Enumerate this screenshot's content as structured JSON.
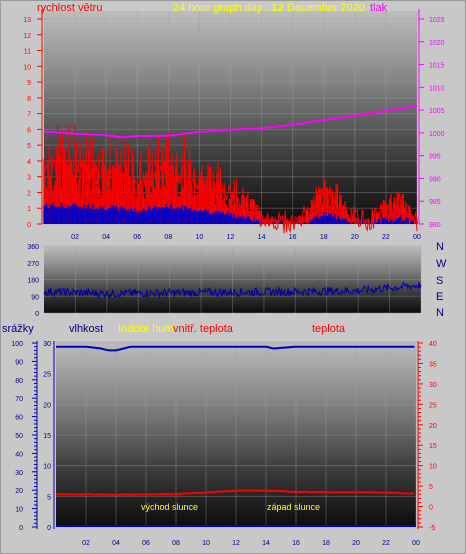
{
  "header": {
    "wind_title": "rychlost větru",
    "graph_title": "24 hour graph day : 12 December 2020",
    "pressure_title": "tlak"
  },
  "compass": [
    "N",
    "W",
    "S",
    "E",
    "N"
  ],
  "mid_header": {
    "rain": "srážky",
    "humidity": "vlhkost",
    "indoor_hum": "Indoor hum",
    "indoor_temp": "vnitř. teplota",
    "temperature": "teplota"
  },
  "annotations": {
    "sunrise": "východ slunce",
    "sunset": "západ slunce"
  },
  "time_ticks": [
    "02",
    "04",
    "06",
    "08",
    "10",
    "12",
    "14",
    "16",
    "18",
    "20",
    "22",
    "00"
  ],
  "colors": {
    "wind": "#ff0000",
    "gust": "#ff0000",
    "wind_avg": "#0000cc",
    "pressure": "#ff00ff",
    "direction": "#0000aa",
    "humidity": "#0000cc",
    "temperature": "#ff0000",
    "rain": "#0000cc",
    "label_red": "#ff0000",
    "label_yellow": "#ffff00",
    "label_magenta": "#ff00ff",
    "label_blue": "#0000aa"
  },
  "chart_data": [
    {
      "type": "line",
      "title": "24 hour graph day : 12 December 2020",
      "x_ticks": [
        "02",
        "04",
        "06",
        "08",
        "10",
        "12",
        "14",
        "16",
        "18",
        "20",
        "22",
        "00"
      ],
      "y_left_label": "rychlost větru",
      "y_left_ticks": [
        "0",
        "1",
        "2",
        "3",
        "4",
        "5",
        "6",
        "7",
        "8",
        "9",
        "10",
        "11",
        "12",
        "13"
      ],
      "y_left_range": [
        0,
        13
      ],
      "y_right_label": "tlak",
      "y_right_ticks": [
        "980",
        "985",
        "990",
        "995",
        "1000",
        "1005",
        "1010",
        "1015",
        "1020",
        "1025"
      ],
      "y_right_range": [
        980,
        1025
      ],
      "series": [
        {
          "name": "rychlost větru",
          "axis": "left",
          "hours": [
            0,
            2,
            4,
            5,
            6,
            8,
            10,
            12,
            13,
            14,
            15,
            16,
            17,
            18,
            19,
            20,
            21,
            22,
            23,
            24
          ],
          "values": [
            3.5,
            3.5,
            3.2,
            3.0,
            2.6,
            3.4,
            2.7,
            1.8,
            1.2,
            0.5,
            0.2,
            0.1,
            0.6,
            2.0,
            1.3,
            0.3,
            0.2,
            1.0,
            1.2,
            0.2
          ]
        },
        {
          "name": "tlak",
          "axis": "right",
          "hours": [
            0,
            2,
            4,
            5,
            6,
            8,
            10,
            12,
            14,
            16,
            18,
            20,
            22,
            24
          ],
          "values": [
            1000.3,
            999.8,
            999.5,
            999.0,
            999.3,
            999.4,
            1000.2,
            1000.7,
            1001.0,
            1001.8,
            1002.8,
            1003.8,
            1004.8,
            1005.9
          ]
        }
      ]
    },
    {
      "type": "scatter",
      "x_ticks": [
        "02",
        "04",
        "06",
        "08",
        "10",
        "12",
        "14",
        "16",
        "18",
        "20",
        "22",
        "00"
      ],
      "y_ticks": [
        "0",
        "90",
        "180",
        "270",
        "360"
      ],
      "y_range": [
        0,
        360
      ],
      "series": [
        {
          "hours": [
            0,
            4,
            8,
            12,
            16,
            20,
            22,
            24
          ],
          "values": [
            115,
            105,
            108,
            112,
            115,
            120,
            135,
            150
          ]
        }
      ]
    },
    {
      "type": "line",
      "x_ticks": [
        "02",
        "04",
        "06",
        "08",
        "10",
        "12",
        "14",
        "16",
        "18",
        "20",
        "22",
        "00"
      ],
      "y_left_label": "vlhkost",
      "y_left_ticks": [
        "0",
        "10",
        "20",
        "30",
        "40",
        "50",
        "60",
        "70",
        "80",
        "90",
        "100"
      ],
      "y_left_range": [
        0,
        100
      ],
      "y_rain_ticks": [
        "0",
        "5",
        "10",
        "15",
        "20",
        "25",
        "30"
      ],
      "y_rain_range": [
        0,
        30
      ],
      "y_right_label": "teplota",
      "y_right_ticks": [
        "-5",
        "0",
        "5",
        "10",
        "15",
        "20",
        "25",
        "30",
        "35",
        "40"
      ],
      "y_right_range": [
        -5,
        40
      ],
      "series": [
        {
          "name": "vlhkost",
          "hours": [
            0,
            2,
            3,
            3.5,
            4,
            4.5,
            5,
            6,
            8,
            10,
            12,
            14,
            14.5,
            16,
            18,
            20,
            22,
            24
          ],
          "values": [
            98,
            98,
            97,
            96,
            96,
            97,
            98,
            98,
            98,
            98,
            98,
            98,
            97,
            98,
            98,
            98,
            98,
            98
          ]
        },
        {
          "name": "teplota",
          "hours": [
            0,
            2,
            4,
            6,
            8,
            10,
            12,
            14,
            16,
            18,
            20,
            22,
            24
          ],
          "values": [
            3.0,
            3.0,
            2.9,
            3.0,
            3.1,
            3.4,
            3.9,
            3.9,
            3.6,
            3.5,
            3.5,
            3.4,
            3.2
          ]
        }
      ]
    }
  ]
}
